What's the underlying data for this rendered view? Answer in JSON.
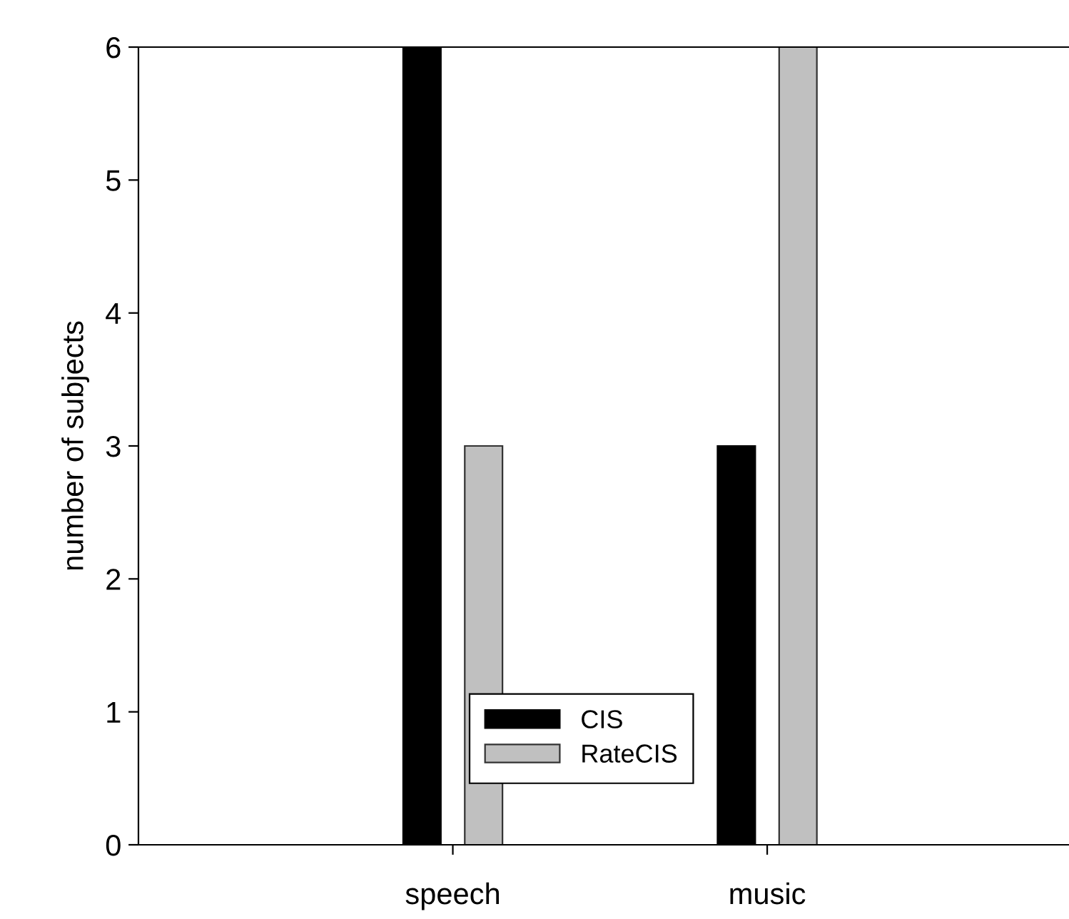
{
  "chart_data": {
    "type": "bar",
    "ylabel": "number of subjects",
    "categories": [
      "speech",
      "music"
    ],
    "series": [
      {
        "name": "CIS",
        "color": "#000000",
        "values": [
          6,
          3
        ]
      },
      {
        "name": "RateCIS",
        "color": "#c0c0c0",
        "values": [
          3,
          6
        ]
      }
    ],
    "ylim": [
      0,
      6
    ],
    "yticks": [
      0,
      1,
      2,
      3,
      4,
      5,
      6
    ],
    "grid": false,
    "legend": "bottom"
  }
}
